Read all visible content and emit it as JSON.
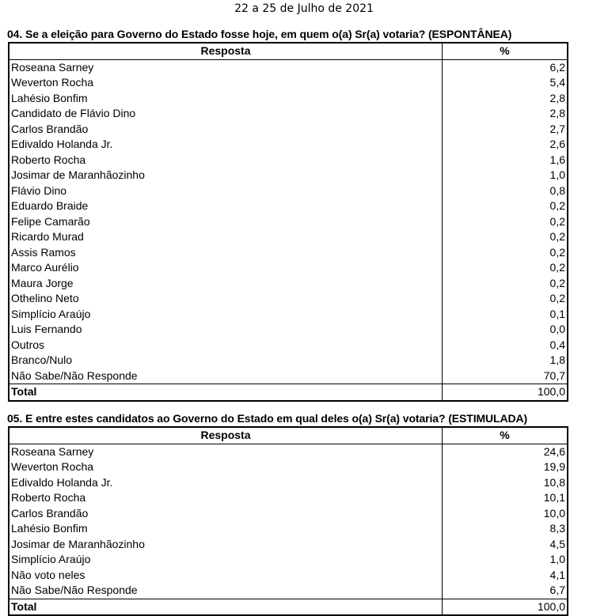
{
  "date": "22 a 25 de Julho de 2021",
  "q4": {
    "title": "04. Se a eleição para Governo do Estado fosse hoje, em quem o(a) Sr(a) votaria? (ESPONTÂNEA)",
    "headers": [
      "Resposta",
      "%"
    ],
    "rows": [
      [
        "Roseana Sarney",
        "6,2"
      ],
      [
        "Weverton Rocha",
        "5,4"
      ],
      [
        "Lahésio Bonfim",
        "2,8"
      ],
      [
        "Candidato de Flávio Dino",
        "2,8"
      ],
      [
        "Carlos Brandão",
        "2,7"
      ],
      [
        "Edivaldo Holanda Jr.",
        "2,6"
      ],
      [
        "Roberto Rocha",
        "1,6"
      ],
      [
        "Josimar de Maranhãozinho",
        "1,0"
      ],
      [
        "Flávio Dino",
        "0,8"
      ],
      [
        "Eduardo Braide",
        "0,2"
      ],
      [
        "Felipe Camarão",
        "0,2"
      ],
      [
        "Ricardo Murad",
        "0,2"
      ],
      [
        "Assis Ramos",
        "0,2"
      ],
      [
        "Marco Aurélio",
        "0,2"
      ],
      [
        "Maura Jorge",
        "0,2"
      ],
      [
        "Othelino Neto",
        "0,2"
      ],
      [
        "Simplício Araújo",
        "0,1"
      ],
      [
        "Luis Fernando",
        "0,0"
      ],
      [
        "Outros",
        "0,4"
      ],
      [
        "Branco/Nulo",
        "1,8"
      ],
      [
        "Não Sabe/Não Responde",
        "70,7"
      ]
    ],
    "total": [
      "Total",
      "100,0"
    ]
  },
  "q5": {
    "title": "05. E entre estes candidatos ao Governo do Estado em qual deles o(a) Sr(a) votaria? (ESTIMULADA)",
    "headers": [
      "Resposta",
      "%"
    ],
    "rows": [
      [
        "Roseana Sarney",
        "24,6"
      ],
      [
        "Weverton Rocha",
        "19,9"
      ],
      [
        "Edivaldo Holanda Jr.",
        "10,8"
      ],
      [
        "Roberto Rocha",
        "10,1"
      ],
      [
        "Carlos Brandão",
        "10,0"
      ],
      [
        "Lahésio Bonfim",
        "8,3"
      ],
      [
        "Josimar de Maranhãozinho",
        "4,5"
      ],
      [
        "Simplício Araújo",
        "1,0"
      ],
      [
        "Não voto neles",
        "4,1"
      ],
      [
        "Não Sabe/Não Responde",
        "6,7"
      ]
    ],
    "total": [
      "Total",
      "100,0"
    ]
  }
}
